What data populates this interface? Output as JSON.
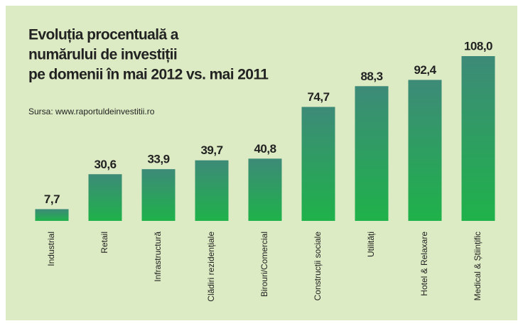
{
  "chart_data": {
    "type": "bar",
    "title": [
      "Evoluția procentuală a",
      "numărului de investiții",
      "pe domenii în mai 2012 vs. mai 2011"
    ],
    "subtitle": "Sursa: www.raportuldeinvestitii.ro",
    "categories": [
      "Industrial",
      "Retail",
      "Infrastructură",
      "Clădiri rezidențiale",
      "Birouri/Comercial",
      "Construcții sociale",
      "Utilități",
      "Hotel & Relaxare",
      "Medical & Științific"
    ],
    "values": [
      7.7,
      30.6,
      33.9,
      39.7,
      40.8,
      74.7,
      88.3,
      92.4,
      108.0
    ],
    "value_labels": [
      "7,7",
      "30,6",
      "33,9",
      "39,7",
      "40,8",
      "74,7",
      "88,3",
      "92,4",
      "108,0"
    ],
    "color": [
      "#3d8a78",
      "#1fb24a"
    ]
  }
}
